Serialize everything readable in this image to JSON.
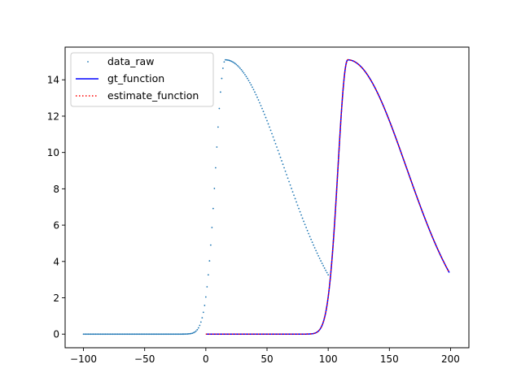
{
  "chart_data": {
    "type": "line",
    "title": "",
    "xlabel": "",
    "ylabel": "",
    "xlim": [
      -115,
      215
    ],
    "ylim": [
      -0.75,
      15.8
    ],
    "xticks": [
      -100,
      -50,
      0,
      50,
      100,
      150,
      200
    ],
    "yticks": [
      0,
      2,
      4,
      6,
      8,
      10,
      12,
      14
    ],
    "grid": false,
    "legend_position": "top-left",
    "series": [
      {
        "name": "data_raw",
        "style": "scatter",
        "color": "#1f77b4",
        "x_start": -100,
        "x_end": 100,
        "x_step": 1,
        "peak_x": 16,
        "peak_y": 15.1,
        "rise_width": 8,
        "decay_width": 48
      },
      {
        "name": "gt_function",
        "style": "solid",
        "color": "#0000ff",
        "x_start": 0,
        "x_end": 199,
        "peak_x": 116,
        "peak_y": 15.1,
        "rise_width": 8,
        "decay_width": 48
      },
      {
        "name": "estimate_function",
        "style": "dotted",
        "color": "#ff0000",
        "x_start": 0,
        "x_end": 199,
        "peak_x": 116,
        "peak_y": 15.1,
        "rise_width": 8,
        "decay_width": 48
      }
    ]
  }
}
